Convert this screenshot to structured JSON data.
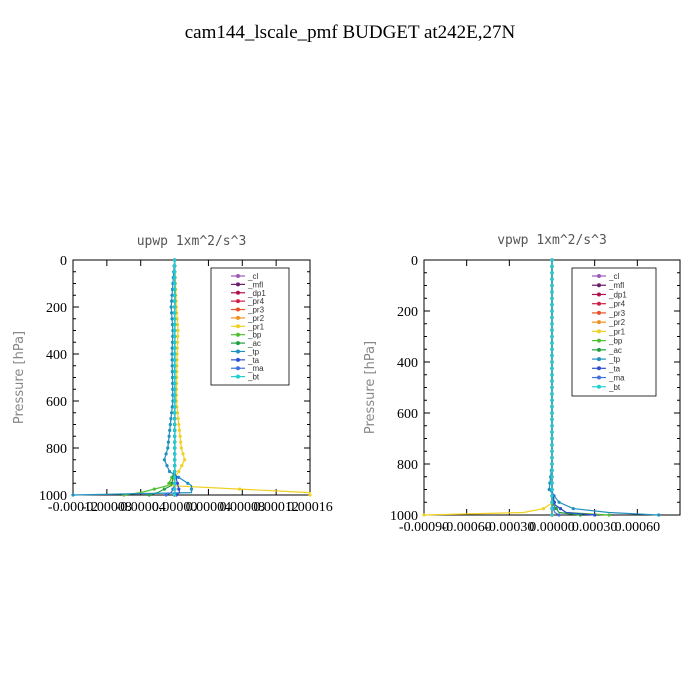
{
  "page_title": "cam144_lscale_pmf  BUDGET at242E,27N",
  "colors": {
    "_cl": "#9b59b6",
    "_mfl": "#6a1b6a",
    "_dp1": "#b01050",
    "_pr4": "#d0204a",
    "_pr3": "#e8502a",
    "_pr2": "#f09020",
    "_pr1": "#f0d020",
    "_bp": "#50c030",
    "_ac": "#20a040",
    "_tp": "#2090c0",
    "_ta": "#3050d0",
    "_ma": "#4070e0",
    "_bt": "#20d0d0"
  },
  "chart_data": [
    {
      "type": "line",
      "title": "upwp   1xm^2/s^3",
      "ylabel": "Pressure [hPa]",
      "xlim": [
        -0.00012,
        0.00016
      ],
      "ylim": [
        0,
        1000
      ],
      "y_inverted": true,
      "xticks": [
        "-0.00012",
        "-0.00008",
        "-0.00004",
        "0.00000",
        "0.00004",
        "0.00008",
        "0.00012",
        "0.00016"
      ],
      "yticks": [
        "0",
        "200",
        "400",
        "600",
        "800",
        "1000"
      ],
      "legend": [
        "_cl",
        "_mfl",
        "_dp1",
        "_pr4",
        "_pr3",
        "_pr2",
        "_pr1",
        "_bp",
        "_ac",
        "_tp",
        "_ta",
        "_ma",
        "_bt"
      ],
      "legend_position": "top-right",
      "series": [
        {
          "name": "_cl",
          "p": [
            0,
            200,
            400,
            600,
            800,
            900,
            960,
            1000
          ],
          "v": [
            0,
            0,
            0,
            0,
            0,
            0,
            0,
            0
          ]
        },
        {
          "name": "_mfl",
          "p": [
            0,
            200,
            400,
            600,
            800,
            900,
            960,
            1000
          ],
          "v": [
            0,
            0,
            0,
            0,
            0,
            0,
            0,
            0
          ]
        },
        {
          "name": "_dp1",
          "p": [
            0,
            200,
            400,
            600,
            800,
            900,
            960,
            1000
          ],
          "v": [
            0,
            0,
            0,
            0,
            0,
            0,
            0,
            0
          ]
        },
        {
          "name": "_pr4",
          "p": [
            0,
            200,
            400,
            600,
            800,
            900,
            960,
            1000
          ],
          "v": [
            0,
            0,
            0,
            0,
            0,
            0,
            0,
            0
          ]
        },
        {
          "name": "_pr3",
          "p": [
            0,
            200,
            400,
            600,
            800,
            900,
            960,
            1000
          ],
          "v": [
            0,
            0,
            0,
            0,
            0,
            0,
            0,
            0
          ]
        },
        {
          "name": "_pr2",
          "p": [
            0,
            200,
            400,
            600,
            800,
            900,
            960,
            1000
          ],
          "v": [
            0,
            0,
            0,
            0,
            0,
            0,
            0,
            0
          ]
        },
        {
          "name": "_pr1",
          "p": [
            0,
            200,
            300,
            400,
            600,
            800,
            850,
            900,
            960,
            990,
            1000
          ],
          "v": [
            0,
            2e-06,
            4e-06,
            3e-06,
            2e-06,
            8e-06,
            1.2e-05,
            5e-06,
            -6e-06,
            0.00016,
            0.00016
          ]
        },
        {
          "name": "_bp",
          "p": [
            0,
            400,
            800,
            900,
            960,
            990,
            1000
          ],
          "v": [
            0,
            0,
            0,
            0,
            -8e-06,
            -4e-05,
            -6e-05
          ]
        },
        {
          "name": "_ac",
          "p": [
            0,
            400,
            800,
            900,
            960,
            990,
            1000
          ],
          "v": [
            0,
            0,
            0,
            0,
            -4e-06,
            -2e-05,
            -3e-05
          ]
        },
        {
          "name": "_tp",
          "p": [
            0,
            200,
            300,
            400,
            600,
            800,
            850,
            900,
            960,
            990,
            1000
          ],
          "v": [
            0,
            -4e-06,
            -2e-06,
            -3e-06,
            -2e-06,
            -8e-06,
            -1.2e-05,
            -6e-06,
            2e-05,
            2e-05,
            -0.00012
          ]
        },
        {
          "name": "_ta",
          "p": [
            0,
            400,
            800,
            900,
            960,
            990,
            1000
          ],
          "v": [
            0,
            0,
            0,
            0,
            4e-06,
            6e-06,
            2e-06
          ]
        },
        {
          "name": "_ma",
          "p": [
            0,
            400,
            800,
            900,
            960,
            990,
            1000
          ],
          "v": [
            0,
            0,
            0,
            0,
            0,
            -4e-06,
            -1e-05
          ]
        },
        {
          "name": "_bt",
          "p": [
            0,
            400,
            800,
            900,
            960,
            990,
            1000
          ],
          "v": [
            0,
            0,
            0,
            0,
            0,
            0,
            0
          ]
        }
      ]
    },
    {
      "type": "line",
      "title": "vpwp   1xm^2/s^3",
      "ylabel": "Pressure [hPa]",
      "xlim": [
        -0.0009,
        0.0009
      ],
      "ylim": [
        0,
        1000
      ],
      "y_inverted": true,
      "xticks": [
        "-0.00090",
        "-0.00060",
        "-0.00030",
        "0.00000",
        "0.00030",
        "0.00060"
      ],
      "yticks": [
        "0",
        "200",
        "400",
        "600",
        "800",
        "1000"
      ],
      "legend": [
        "_cl",
        "_mfl",
        "_dp1",
        "_pr4",
        "_pr3",
        "_pr2",
        "_pr1",
        "_bp",
        "_ac",
        "_tp",
        "_ta",
        "_ma",
        "_bt"
      ],
      "legend_position": "top-right",
      "series": [
        {
          "name": "_cl",
          "p": [
            0,
            200,
            400,
            600,
            800,
            900,
            960,
            1000
          ],
          "v": [
            0,
            0,
            0,
            0,
            0,
            0,
            0,
            0
          ]
        },
        {
          "name": "_mfl",
          "p": [
            0,
            200,
            400,
            600,
            800,
            900,
            960,
            1000
          ],
          "v": [
            0,
            0,
            0,
            0,
            0,
            0,
            0,
            0
          ]
        },
        {
          "name": "_dp1",
          "p": [
            0,
            200,
            400,
            600,
            800,
            900,
            960,
            1000
          ],
          "v": [
            0,
            0,
            0,
            0,
            0,
            0,
            0,
            0
          ]
        },
        {
          "name": "_pr4",
          "p": [
            0,
            200,
            400,
            600,
            800,
            900,
            960,
            1000
          ],
          "v": [
            0,
            0,
            0,
            0,
            0,
            0,
            0,
            0
          ]
        },
        {
          "name": "_pr3",
          "p": [
            0,
            200,
            400,
            600,
            800,
            900,
            960,
            1000
          ],
          "v": [
            0,
            0,
            0,
            0,
            0,
            0,
            0,
            0
          ]
        },
        {
          "name": "_pr2",
          "p": [
            0,
            200,
            400,
            600,
            800,
            900,
            960,
            1000
          ],
          "v": [
            0,
            0,
            0,
            0,
            0,
            0,
            0,
            0
          ]
        },
        {
          "name": "_pr1",
          "p": [
            0,
            400,
            800,
            900,
            950,
            975,
            990,
            1000
          ],
          "v": [
            0,
            0,
            0,
            0,
            1e-05,
            -6e-05,
            -0.0002,
            -0.0009
          ]
        },
        {
          "name": "_bp",
          "p": [
            0,
            400,
            800,
            900,
            960,
            990,
            1000
          ],
          "v": [
            0,
            0,
            0,
            0,
            2e-05,
            0.0001,
            0.0004
          ]
        },
        {
          "name": "_ac",
          "p": [
            0,
            400,
            800,
            900,
            960,
            990,
            1000
          ],
          "v": [
            0,
            0,
            0,
            0,
            1e-05,
            5e-05,
            0.0002
          ]
        },
        {
          "name": "_tp",
          "p": [
            0,
            400,
            800,
            850,
            900,
            950,
            975,
            990,
            1000
          ],
          "v": [
            0,
            0,
            0,
            -1e-05,
            -2e-05,
            5e-05,
            0.00015,
            0.0004,
            0.00075
          ]
        },
        {
          "name": "_ta",
          "p": [
            0,
            400,
            800,
            900,
            960,
            990,
            1000
          ],
          "v": [
            0,
            0,
            0,
            0,
            2e-05,
            0.0001,
            0.0003
          ]
        },
        {
          "name": "_ma",
          "p": [
            0,
            400,
            800,
            900,
            960,
            990,
            1000
          ],
          "v": [
            0,
            0,
            0,
            0,
            0,
            2e-05,
            5e-05
          ]
        },
        {
          "name": "_bt",
          "p": [
            0,
            400,
            800,
            900,
            960,
            990,
            1000
          ],
          "v": [
            0,
            0,
            0,
            0,
            0,
            0,
            0
          ]
        }
      ]
    }
  ]
}
